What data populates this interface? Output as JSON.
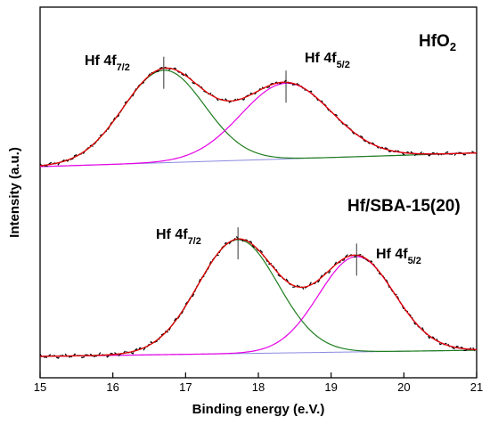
{
  "chart_data": {
    "type": "line",
    "xlabel": "Binding energy (e.V.)",
    "ylabel": "Intensity (a.u.)",
    "xlim": [
      15,
      21
    ],
    "x_ticks": [
      "15",
      "16",
      "17",
      "18",
      "19",
      "20",
      "21"
    ],
    "y_ticks_shown": false,
    "grid": false,
    "panels": [
      {
        "label": "HfO2",
        "label_main": "HfO",
        "label_sub": "2",
        "peaks": [
          {
            "label_main": "Hf 4f",
            "label_sub": "7/2",
            "position": 16.7,
            "height": 0.88,
            "sigma": 0.56,
            "color": "#1e7d1e"
          },
          {
            "label_main": "Hf 4f",
            "label_sub": "5/2",
            "position": 18.38,
            "height": 0.72,
            "sigma": 0.62,
            "color": "#e600e6"
          }
        ],
        "background_start": 0.0,
        "background_end": 0.13
      },
      {
        "label": "Hf/SBA-15(20)",
        "label_main": "Hf/SBA-15(20)",
        "label_sub": "",
        "peaks": [
          {
            "label_main": "Hf 4f",
            "label_sub": "7/2",
            "position": 17.72,
            "height": 0.92,
            "sigma": 0.55,
            "color": "#1e7d1e"
          },
          {
            "label_main": "Hf 4f",
            "label_sub": "5/2",
            "position": 19.35,
            "height": 0.77,
            "sigma": 0.52,
            "color": "#e600e6"
          }
        ],
        "background_start": 0.0,
        "background_end": 0.05
      }
    ],
    "colors": {
      "envelope": "#e00000",
      "experimental": "#000000",
      "background": "#8a8ae0",
      "component_7_2": "#1e7d1e",
      "component_5_2": "#e600e6"
    }
  }
}
